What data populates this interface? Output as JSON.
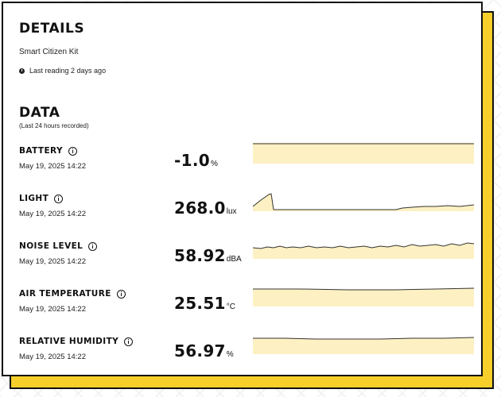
{
  "details": {
    "title": "DETAILS",
    "kit_name": "Smart Citizen Kit",
    "last_reading": "Last reading 2 days ago"
  },
  "data_section": {
    "title": "DATA",
    "subtitle": "(Last 24 hours recorded)"
  },
  "sensors": [
    {
      "label": "BATTERY",
      "date": "May 19, 2025 14:22",
      "value": "-1.0",
      "unit": "%"
    },
    {
      "label": "LIGHT",
      "date": "May 19, 2025 14:22",
      "value": "268.0",
      "unit": "lux"
    },
    {
      "label": "NOISE LEVEL",
      "date": "May 19, 2025 14:22",
      "value": "58.92",
      "unit": "dBA"
    },
    {
      "label": "AIR TEMPERATURE",
      "date": "May 19, 2025 14:22",
      "value": "25.51",
      "unit": "°C"
    },
    {
      "label": "RELATIVE HUMIDITY",
      "date": "May 19, 2025 14:22",
      "value": "56.97",
      "unit": "%"
    }
  ],
  "colors": {
    "accent": "#f6cf2b",
    "spark_fill": "#fdf0c2",
    "line": "#333333"
  },
  "icons": [
    "clock-icon",
    "info-icon"
  ]
}
